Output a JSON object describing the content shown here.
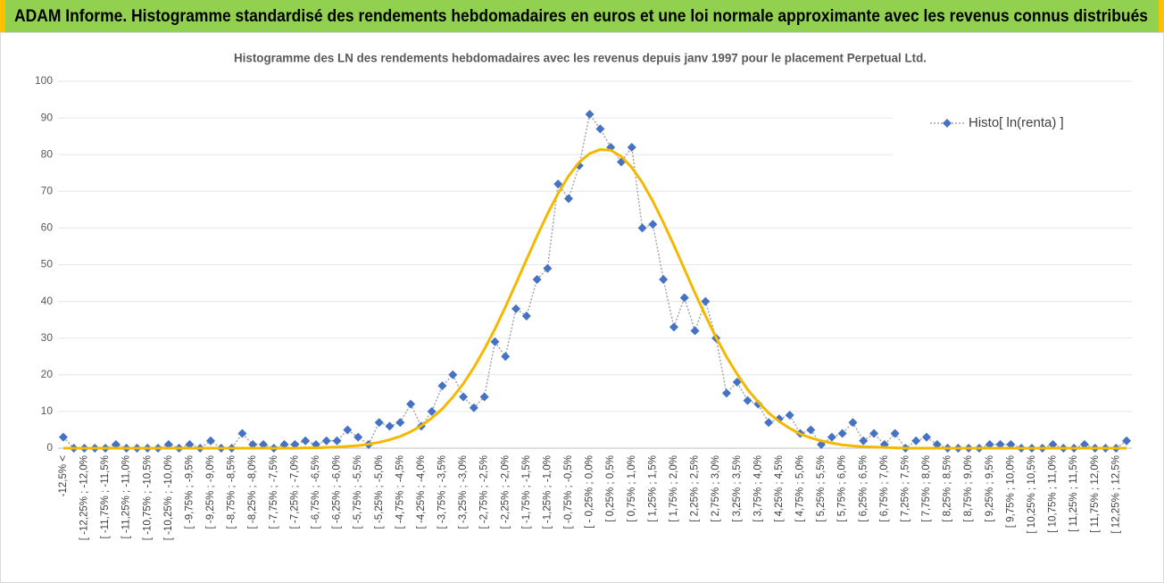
{
  "header": {
    "title": "ADAM Informe. Histogramme standardisé des rendements hebdomadaires en euros et une loi normale approximante avec les revenus connus distribués"
  },
  "chart_data": {
    "type": "line",
    "title": "Histogramme des LN des rendements hebdomadaires avec les revenus depuis janv 1997 pour le placement Perpetual Ltd.",
    "categories": [
      "-12,5% <",
      null,
      "[ -12,25% ; -12,0%",
      null,
      "[ -11,75% ; -11,5%",
      null,
      "[ -11,25% ; -11,0%",
      null,
      "[ -10,75% ; -10,5%",
      null,
      "[ -10,25% ; -10,0%",
      null,
      "[ -9,75% ; -9,5%",
      null,
      "[ -9,25% ; -9,0%",
      null,
      "[ -8,75% ; -8,5%",
      null,
      "[ -8,25% ; -8,0%",
      null,
      "[ -7,75% ; -7,5%",
      null,
      "[ -7,25% ; -7,0%",
      null,
      "[ -6,75% ; -6,5%",
      null,
      "[ -6,25% ; -6,0%",
      null,
      "[ -5,75% ; -5,5%",
      null,
      "[ -5,25% ; -5,0%",
      null,
      "[ -4,75% ; -4,5%",
      null,
      "[ -4,25% ; -4,0%",
      null,
      "[ -3,75% ; -3,5%",
      null,
      "[ -3,25% ; -3,0%",
      null,
      "[ -2,75% ; -2,5%",
      null,
      "[ -2,25% ; -2,0%",
      null,
      "[ -1,75% ; -1,5%",
      null,
      "[ -1,25% ; -1,0%",
      null,
      "[ -0,75% ; -0,5%",
      null,
      "[ - 0,25% ; 0,0%",
      null,
      "[ 0,25% ; 0,5%",
      null,
      "[ 0,75% ; 1,0%",
      null,
      "[ 1,25% ; 1,5%",
      null,
      "[ 1,75% ; 2,0%",
      null,
      "[ 2,25% ; 2,5%",
      null,
      "[ 2,75% ; 3,0%",
      null,
      "[ 3,25% ; 3,5%",
      null,
      "[ 3,75% ; 4,0%",
      null,
      "[ 4,25% ; 4,5%",
      null,
      "[ 4,75% ; 5,0%",
      null,
      "[ 5,25% ; 5,5%",
      null,
      "[ 5,75% ; 6,0%",
      null,
      "[ 6,25% ; 6,5%",
      null,
      "[ 6,75% ; 7,0%",
      null,
      "[ 7,25% ; 7,5%",
      null,
      "[ 7,75% ; 8,0%",
      null,
      "[ 8,25% ; 8,5%",
      null,
      "[ 8,75% ; 9,0%",
      null,
      "[ 9,25% ; 9,5%",
      null,
      "[ 9,75% ; 10,0%",
      null,
      "[ 10,25% ; 10,5%",
      null,
      "[ 10,75% ; 11,0%",
      null,
      "[ 11,25% ; 11,5%",
      null,
      "[ 11,75% ; 12,0%",
      null,
      "[ 12,25% ; 12,5%",
      null
    ],
    "series": [
      {
        "name": "Histo[ ln(renta) ]",
        "color": "#4472c4",
        "line_color": "#a5a5a5",
        "marker": "diamond",
        "values": [
          3,
          0,
          0,
          0,
          0,
          1,
          0,
          0,
          0,
          0,
          1,
          0,
          1,
          0,
          2,
          0,
          0,
          4,
          1,
          1,
          0,
          1,
          1,
          2,
          1,
          2,
          2,
          5,
          3,
          1,
          7,
          6,
          7,
          12,
          6,
          10,
          17,
          20,
          14,
          11,
          14,
          29,
          25,
          38,
          36,
          46,
          49,
          72,
          68,
          77,
          91,
          87,
          82,
          78,
          82,
          60,
          61,
          46,
          33,
          41,
          32,
          40,
          30,
          15,
          18,
          13,
          12,
          7,
          8,
          9,
          4,
          5,
          1,
          3,
          4,
          7,
          2,
          4,
          1,
          4,
          0,
          2,
          3,
          1,
          0,
          0,
          0,
          0,
          1,
          1,
          1,
          0,
          0,
          0,
          1,
          0,
          0,
          1,
          0,
          0,
          0,
          2
        ]
      },
      {
        "color": "#f5b800",
        "values": [
          0,
          0,
          0,
          0,
          0,
          0,
          0,
          0,
          0,
          0,
          0,
          0,
          0,
          0,
          0,
          0,
          0,
          0,
          0,
          0,
          0,
          0,
          0,
          0.1,
          0.1,
          0.2,
          0.3,
          0.5,
          0.7,
          1.1,
          1.6,
          2.3,
          3.2,
          4.5,
          6.1,
          8.2,
          10.7,
          13.9,
          17.6,
          22.0,
          27.0,
          32.5,
          38.5,
          44.9,
          51.4,
          57.8,
          63.9,
          69.4,
          74.2,
          77.9,
          80.3,
          81.4,
          81.2,
          79.5,
          76.5,
          72.4,
          67.3,
          61.5,
          55.3,
          48.8,
          42.3,
          36.1,
          30.2,
          24.9,
          20.2,
          16.0,
          12.6,
          9.6,
          7.3,
          5.4,
          3.9,
          2.8,
          2.0,
          1.4,
          0.9,
          0.6,
          0.4,
          0.3,
          0.2,
          0.1,
          0,
          0,
          0,
          0,
          0,
          0,
          0,
          0,
          0,
          0,
          0,
          0,
          0,
          0,
          0,
          0,
          0,
          0,
          0,
          0,
          0,
          0
        ]
      }
    ],
    "ylim": [
      0,
      100
    ],
    "yticks": [
      0,
      10,
      20,
      30,
      40,
      50,
      60,
      70,
      80,
      90,
      100
    ],
    "grid": true,
    "legend": "top-right"
  }
}
